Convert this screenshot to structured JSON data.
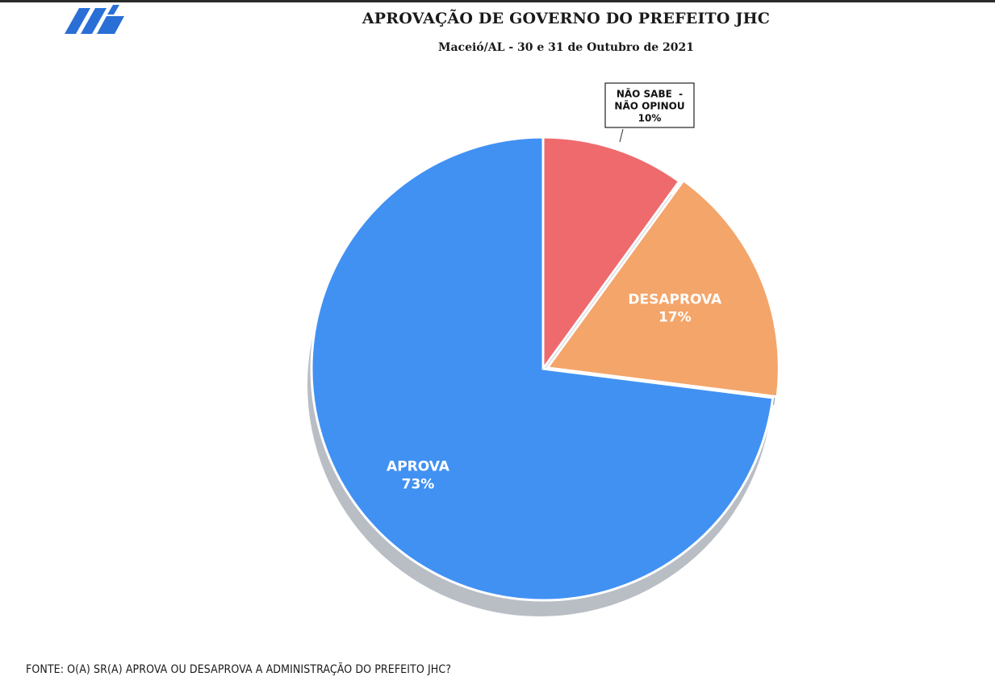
{
  "header": {
    "logo_icon": "stacked-parallelogram-logo-icon",
    "brand_color": "#2a6fd6"
  },
  "chart_data": {
    "type": "pie",
    "title": "APROVAÇÃO DE GOVERNO DO PREFEITO JHC",
    "subtitle": "Maceió/AL - 30 e 31 de Outubro de 2021",
    "slices": [
      {
        "name": "NÃO SABE - NÃO OPINOU",
        "label_lines": [
          "NÃO SABE  -",
          "NÃO OPINOU"
        ],
        "pct_label": "10%",
        "value": 10,
        "color": "#ef6a6c",
        "label_style": "callout"
      },
      {
        "name": "DESAPROVA",
        "label_lines": [
          "DESAPROVA"
        ],
        "pct_label": "17%",
        "value": 17,
        "color": "#f4a56a",
        "label_style": "inside"
      },
      {
        "name": "APROVA",
        "label_lines": [
          "APROVA"
        ],
        "pct_label": "73%",
        "value": 73,
        "color": "#4191f3",
        "label_style": "inside"
      }
    ],
    "start": "12 o'clock",
    "direction": "clockwise",
    "exploded_slice": "DESAPROVA",
    "shadow_color": "#b9bec5"
  },
  "footer": {
    "source": "FONTE: O(A) SR(A) APROVA OU DESAPROVA A ADMINISTRAÇÃO DO PREFEITO JHC?"
  }
}
